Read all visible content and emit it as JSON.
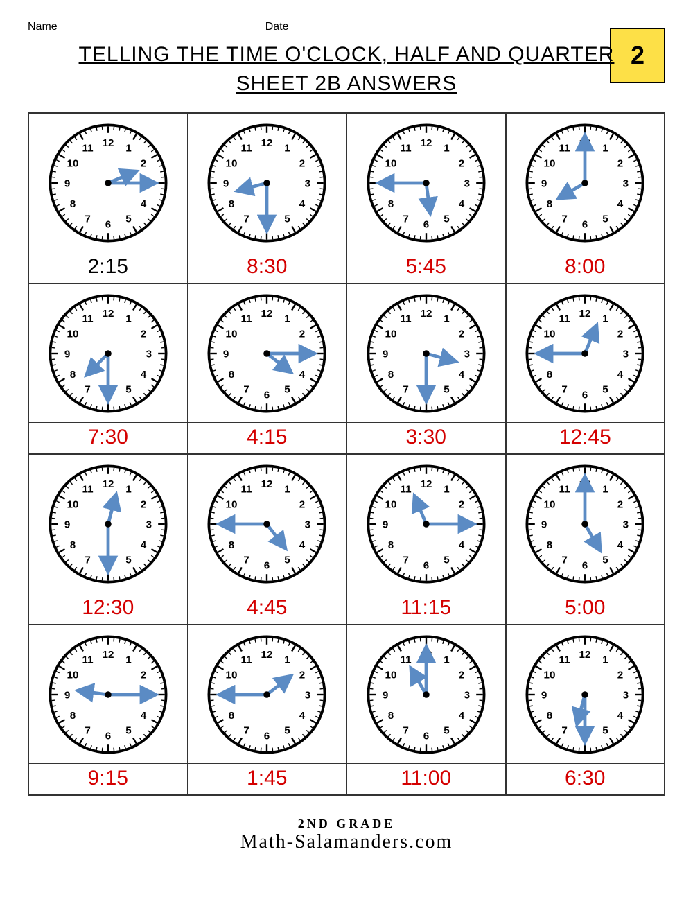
{
  "header": {
    "name_label": "Name",
    "date_label": "Date"
  },
  "title_line1": "TELLING THE TIME O'CLOCK, HALF AND QUARTER",
  "title_line2": "SHEET 2B ANSWERS",
  "logo_text": "2",
  "clock_style": {
    "face_stroke": "#000000",
    "face_fill": "#ffffff",
    "hand_color": "#5b8bc4",
    "hand_stroke_width": 5,
    "numeral_font_size": 16,
    "tick_color": "#000000"
  },
  "answer_colors": {
    "given": "#000000",
    "answer": "#d40000"
  },
  "clocks": [
    {
      "hour": 2,
      "minute": 15,
      "answer": "2:15",
      "color": "given"
    },
    {
      "hour": 8,
      "minute": 30,
      "answer": "8:30",
      "color": "answer"
    },
    {
      "hour": 5,
      "minute": 45,
      "answer": "5:45",
      "color": "answer"
    },
    {
      "hour": 8,
      "minute": 0,
      "answer": "8:00",
      "color": "answer"
    },
    {
      "hour": 7,
      "minute": 30,
      "answer": "7:30",
      "color": "answer"
    },
    {
      "hour": 4,
      "minute": 15,
      "answer": "4:15",
      "color": "answer"
    },
    {
      "hour": 3,
      "minute": 30,
      "answer": "3:30",
      "color": "answer"
    },
    {
      "hour": 12,
      "minute": 45,
      "answer": "12:45",
      "color": "answer"
    },
    {
      "hour": 12,
      "minute": 30,
      "answer": "12:30",
      "color": "answer"
    },
    {
      "hour": 4,
      "minute": 45,
      "answer": "4:45",
      "color": "answer"
    },
    {
      "hour": 11,
      "minute": 15,
      "answer": "11:15",
      "color": "answer"
    },
    {
      "hour": 5,
      "minute": 0,
      "answer": "5:00",
      "color": "answer"
    },
    {
      "hour": 9,
      "minute": 15,
      "answer": "9:15",
      "color": "answer"
    },
    {
      "hour": 1,
      "minute": 45,
      "answer": "1:45",
      "color": "answer"
    },
    {
      "hour": 11,
      "minute": 0,
      "answer": "11:00",
      "color": "answer"
    },
    {
      "hour": 6,
      "minute": 30,
      "answer": "6:30",
      "color": "answer"
    }
  ],
  "footer": {
    "grade": "2ND GRADE",
    "site": "Math-Salamanders.com"
  }
}
